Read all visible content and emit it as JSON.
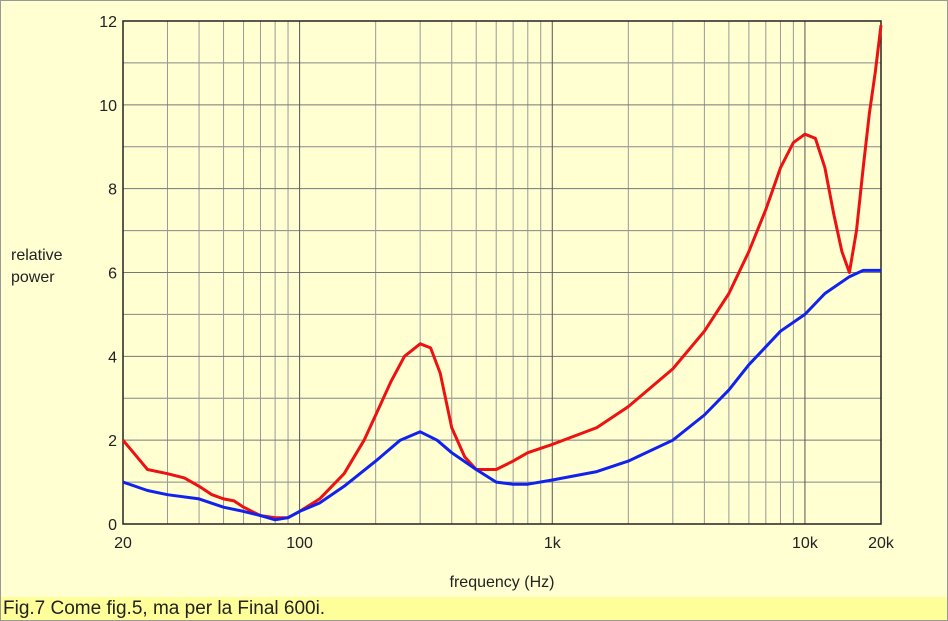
{
  "chart_data": {
    "type": "line",
    "xlabel": "frequency (Hz)",
    "ylabel": "relative power",
    "caption": "Fig.7 Come fig.5, ma per la Final 600i.",
    "xscale": "log",
    "xlim": [
      20,
      20000
    ],
    "xticks": [
      20,
      100,
      {
        "value": 1000,
        "label": "1k"
      },
      {
        "value": 10000,
        "label": "10k"
      },
      {
        "value": 20000,
        "label": "20k"
      }
    ],
    "xminor": [
      30,
      40,
      50,
      60,
      70,
      80,
      90,
      200,
      300,
      400,
      500,
      600,
      700,
      800,
      900,
      2000,
      3000,
      4000,
      5000,
      6000,
      7000,
      8000,
      9000
    ],
    "ylim": [
      0,
      12
    ],
    "yticks": [
      0,
      2,
      4,
      6,
      8,
      10,
      12
    ],
    "yminor": [
      1,
      3,
      5,
      7,
      9,
      11
    ],
    "grid": true,
    "series": [
      {
        "color": "#ee1111",
        "x": [
          20,
          22,
          25,
          30,
          35,
          40,
          45,
          50,
          55,
          60,
          70,
          80,
          90,
          100,
          120,
          150,
          180,
          200,
          230,
          260,
          300,
          330,
          360,
          400,
          450,
          500,
          600,
          700,
          800,
          1000,
          1500,
          2000,
          3000,
          4000,
          5000,
          6000,
          7000,
          8000,
          9000,
          10000,
          11000,
          12000,
          13000,
          14000,
          15000,
          16000,
          17000,
          18000,
          19000,
          20000
        ],
        "values": [
          2.0,
          1.7,
          1.3,
          1.2,
          1.1,
          0.9,
          0.7,
          0.6,
          0.55,
          0.4,
          0.2,
          0.15,
          0.15,
          0.3,
          0.6,
          1.2,
          2.0,
          2.6,
          3.4,
          4.0,
          4.3,
          4.2,
          3.6,
          2.3,
          1.6,
          1.3,
          1.3,
          1.5,
          1.7,
          1.9,
          2.3,
          2.8,
          3.7,
          4.6,
          5.5,
          6.5,
          7.5,
          8.5,
          9.1,
          9.3,
          9.2,
          8.5,
          7.4,
          6.5,
          6.0,
          7.0,
          8.5,
          9.8,
          10.8,
          11.9
        ]
      },
      {
        "color": "#1122ee",
        "x": [
          20,
          25,
          30,
          40,
          50,
          60,
          70,
          80,
          90,
          100,
          120,
          150,
          200,
          250,
          300,
          350,
          400,
          500,
          600,
          700,
          800,
          1000,
          1500,
          2000,
          3000,
          4000,
          5000,
          6000,
          8000,
          10000,
          12000,
          15000,
          17000,
          20000
        ],
        "values": [
          1.0,
          0.8,
          0.7,
          0.6,
          0.4,
          0.3,
          0.2,
          0.1,
          0.15,
          0.3,
          0.5,
          0.9,
          1.5,
          2.0,
          2.2,
          2.0,
          1.7,
          1.3,
          1.0,
          0.95,
          0.95,
          1.05,
          1.25,
          1.5,
          2.0,
          2.6,
          3.2,
          3.8,
          4.6,
          5.0,
          5.5,
          5.9,
          6.05,
          6.05
        ]
      }
    ]
  }
}
